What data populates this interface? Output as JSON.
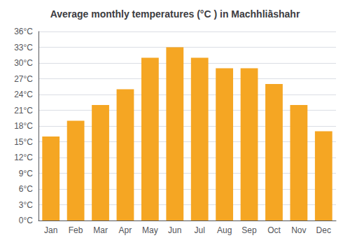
{
  "chart_data": {
    "type": "bar",
    "title": "Average monthly temperatures (°C ) in Machhliā̀shahr",
    "categories": [
      "Jan",
      "Feb",
      "Mar",
      "Apr",
      "May",
      "Jun",
      "Jul",
      "Aug",
      "Sep",
      "Oct",
      "Nov",
      "Dec"
    ],
    "values": [
      16,
      19,
      22,
      25,
      31,
      33,
      31,
      29,
      29,
      26,
      22,
      17
    ],
    "color": "#F5A623",
    "ylim": [
      0,
      36
    ],
    "yticks": [
      {
        "value": 0,
        "label": "0°C"
      },
      {
        "value": 3,
        "label": "3°C"
      },
      {
        "value": 6,
        "label": "6°C"
      },
      {
        "value": 9,
        "label": "9°C"
      },
      {
        "value": 12,
        "label": "12°C"
      },
      {
        "value": 15,
        "label": "15°C"
      },
      {
        "value": 18,
        "label": "18°C"
      },
      {
        "value": 21,
        "label": "21°C"
      },
      {
        "value": 24,
        "label": "24°C"
      },
      {
        "value": 27,
        "label": "27°C"
      },
      {
        "value": 30,
        "label": "30°C"
      },
      {
        "value": 33,
        "label": "33°C"
      },
      {
        "value": 36,
        "label": "36°C"
      }
    ],
    "grid": true
  }
}
